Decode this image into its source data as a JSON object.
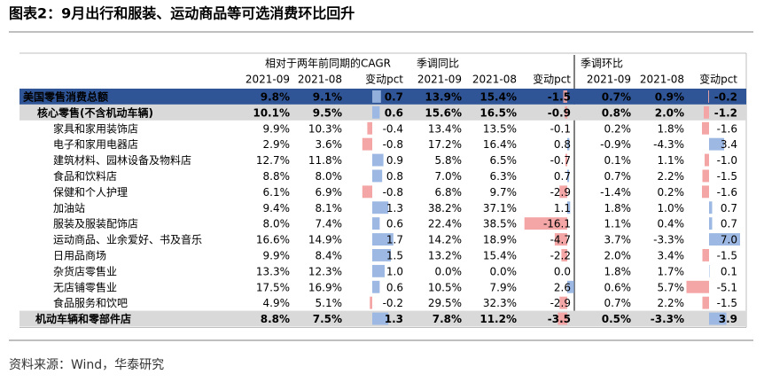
{
  "title": "图表2：9月出行和服装、运动商品等可选消费环比回升",
  "source": "资料来源：Wind，华泰研究",
  "table": {
    "group_headers": [
      "相对于两年前同期的CAGR",
      "季调同比",
      "季调环比"
    ],
    "column_headers": [
      "2021-09",
      "2021-08",
      "变动pct",
      "2021-09",
      "2021-08",
      "变动pct",
      "2021-09",
      "2021-08",
      "变动pct"
    ],
    "rows": [
      [
        "美国零售消费总额",
        "9.8%",
        "9.1%",
        0.7,
        "13.9%",
        "15.4%",
        -1.5,
        "0.7%",
        "0.9%",
        -0.2
      ],
      [
        "核心零售(不含机动车辆)",
        "10.1%",
        "9.5%",
        0.6,
        "15.6%",
        "16.5%",
        -0.9,
        "0.8%",
        "2.0%",
        -1.2
      ],
      [
        "家具和家用装饰店",
        "9.9%",
        "10.3%",
        -0.4,
        "13.4%",
        "13.5%",
        -0.1,
        "0.2%",
        "1.8%",
        -1.6
      ],
      [
        "电子和家用电器店",
        "2.9%",
        "3.6%",
        -0.8,
        "17.2%",
        "16.4%",
        0.8,
        "-0.9%",
        "-4.3%",
        3.4
      ],
      [
        "建筑材料、园林设备及物料店",
        "12.7%",
        "11.8%",
        0.9,
        "5.8%",
        "6.5%",
        -0.7,
        "0.1%",
        "1.1%",
        {
          "value": -1,
          "label": "-1.0"
        }
      ],
      [
        "食品和饮料店",
        "8.8%",
        "8.0%",
        0.8,
        "7.0%",
        "6.3%",
        0.7,
        "0.7%",
        "2.2%",
        -1.5
      ],
      [
        "保健和个人护理",
        "6.1%",
        "6.9%",
        -0.8,
        "6.8%",
        "9.7%",
        -2.9,
        "-1.4%",
        "0.2%",
        -1.6
      ],
      [
        "加油站",
        "9.4%",
        "8.1%",
        1.3,
        "38.2%",
        "37.1%",
        1.1,
        "1.8%",
        "1.0%",
        0.7
      ],
      [
        "服装及服装配饰店",
        "8.0%",
        "7.4%",
        0.6,
        "22.4%",
        "38.5%",
        -16.1,
        "1.1%",
        "0.4%",
        0.7
      ],
      [
        "运动商品、业余爱好、书及音乐",
        "16.6%",
        "14.9%",
        1.7,
        "14.2%",
        "18.9%",
        -4.7,
        "3.7%",
        "-3.3%",
        {
          "value": 7,
          "label": "7.0"
        }
      ],
      [
        "日用品商场",
        "9.9%",
        "8.4%",
        1.5,
        "13.2%",
        "15.4%",
        -2.2,
        "2.0%",
        "3.4%",
        -1.5
      ],
      [
        "杂货店零售业",
        "13.3%",
        "12.3%",
        {
          "value": 1,
          "label": "1.0"
        },
        "0.0%",
        "0.0%",
        {
          "value": 0,
          "label": "0.0"
        },
        "1.8%",
        "1.7%",
        0.1
      ],
      [
        "无店铺零售业",
        "17.5%",
        "16.9%",
        0.6,
        "10.5%",
        "7.9%",
        2.6,
        "0.6%",
        "5.7%",
        -5.1
      ],
      [
        "食品服务和饮吧",
        "4.9%",
        "5.1%",
        -0.2,
        "29.5%",
        "32.3%",
        -2.9,
        "0.7%",
        "2.2%",
        -1.5
      ],
      [
        "机动车辆和零部件店",
        "8.8%",
        "7.5%",
        1.3,
        "7.8%",
        "11.2%",
        -3.5,
        "0.5%",
        "-3.3%",
        3.9
      ]
    ]
  }
}
